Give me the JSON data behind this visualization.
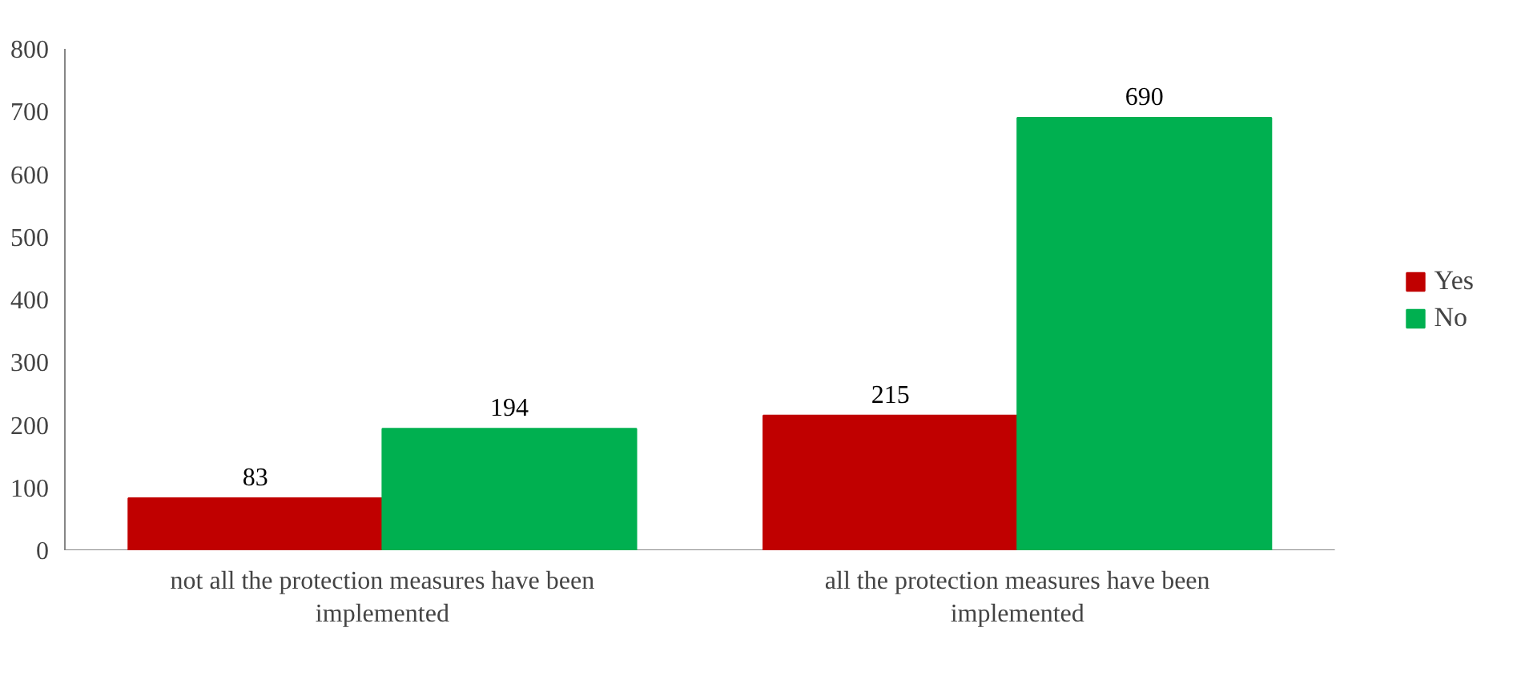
{
  "chart_data": {
    "type": "bar",
    "categories": [
      "not all the protection measures have been implemented",
      "all the protection measures have been implemented"
    ],
    "series": [
      {
        "name": "Yes",
        "color": "#c00000",
        "values": [
          83,
          215
        ]
      },
      {
        "name": "No",
        "color": "#00b050",
        "values": [
          194,
          690
        ]
      }
    ],
    "ylim": [
      0,
      800
    ],
    "yticks": [
      0,
      100,
      200,
      300,
      400,
      500,
      600,
      700,
      800
    ],
    "data_labels": true,
    "legend": "right",
    "grid": false
  }
}
